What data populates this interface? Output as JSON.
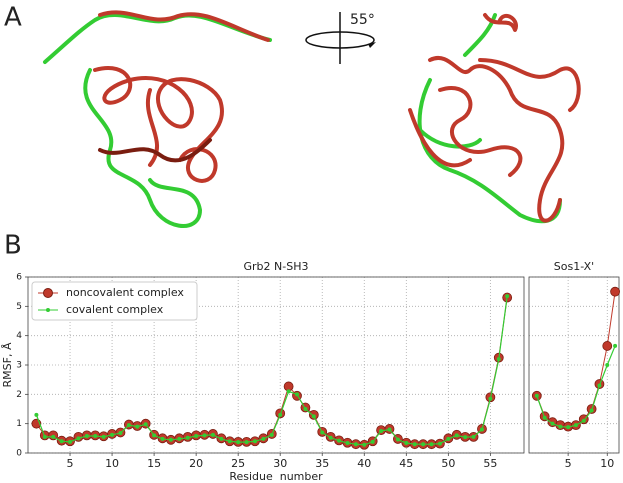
{
  "panel_labels": [
    "A",
    "B"
  ],
  "rotation_label": "55°",
  "chart_data": [
    {
      "type": "line",
      "title": "Grb2 N-SH3",
      "x_label": "Residue  number",
      "y_label": "RMSF, Å",
      "x": [
        1,
        2,
        3,
        4,
        5,
        6,
        7,
        8,
        9,
        10,
        11,
        12,
        13,
        14,
        15,
        16,
        17,
        18,
        19,
        20,
        21,
        22,
        23,
        24,
        25,
        26,
        27,
        28,
        29,
        30,
        31,
        32,
        33,
        34,
        35,
        36,
        37,
        38,
        39,
        40,
        41,
        42,
        43,
        44,
        45,
        46,
        47,
        48,
        49,
        50,
        51,
        52,
        53,
        54,
        55,
        56,
        57
      ],
      "series": [
        {
          "name": "noncovalent complex",
          "color": "#c0392b",
          "values": [
            1.0,
            0.6,
            0.6,
            0.42,
            0.4,
            0.55,
            0.6,
            0.6,
            0.57,
            0.65,
            0.7,
            0.97,
            0.92,
            1.0,
            0.62,
            0.5,
            0.45,
            0.5,
            0.55,
            0.6,
            0.62,
            0.65,
            0.5,
            0.4,
            0.38,
            0.38,
            0.4,
            0.5,
            0.65,
            1.35,
            2.27,
            1.95,
            1.55,
            1.3,
            0.72,
            0.55,
            0.43,
            0.35,
            0.3,
            0.28,
            0.4,
            0.78,
            0.82,
            0.48,
            0.35,
            0.3,
            0.3,
            0.3,
            0.32,
            0.5,
            0.62,
            0.55,
            0.55,
            0.82,
            1.9,
            3.25,
            5.3
          ]
        },
        {
          "name": "covalent complex",
          "color": "#33cc33",
          "values": [
            1.3,
            0.55,
            0.55,
            0.4,
            0.38,
            0.5,
            0.58,
            0.58,
            0.55,
            0.62,
            0.68,
            0.95,
            0.9,
            0.98,
            0.6,
            0.48,
            0.45,
            0.48,
            0.52,
            0.58,
            0.6,
            0.62,
            0.48,
            0.4,
            0.37,
            0.37,
            0.4,
            0.48,
            0.62,
            1.3,
            2.1,
            2.0,
            1.5,
            1.25,
            0.7,
            0.52,
            0.42,
            0.34,
            0.3,
            0.28,
            0.38,
            0.75,
            0.8,
            0.46,
            0.34,
            0.3,
            0.3,
            0.3,
            0.32,
            0.48,
            0.6,
            0.54,
            0.55,
            0.8,
            1.85,
            3.2,
            5.35
          ]
        }
      ],
      "xlim": [
        0,
        59
      ],
      "xticks": [
        5,
        10,
        15,
        20,
        25,
        30,
        35,
        40,
        45,
        50,
        55
      ],
      "ylim": [
        0,
        6
      ],
      "yticks": [
        0,
        1,
        2,
        3,
        4,
        5,
        6
      ],
      "grid": true,
      "legend": "upper left"
    },
    {
      "type": "line",
      "title": "Sos1-X'",
      "x": [
        1,
        2,
        3,
        4,
        5,
        6,
        7,
        8,
        9,
        10,
        11
      ],
      "series": [
        {
          "color": "#c0392b",
          "values": [
            1.95,
            1.25,
            1.05,
            0.95,
            0.9,
            0.95,
            1.15,
            1.5,
            2.35,
            3.65,
            5.5
          ]
        },
        {
          "color": "#33cc33",
          "values": [
            1.95,
            1.2,
            1.0,
            0.9,
            0.88,
            0.95,
            1.1,
            1.45,
            2.3,
            3.0,
            3.65
          ]
        }
      ],
      "xlim": [
        0,
        11.5
      ],
      "xticks": [
        5,
        10
      ],
      "ylim": [
        0,
        6
      ],
      "grid": true
    }
  ]
}
